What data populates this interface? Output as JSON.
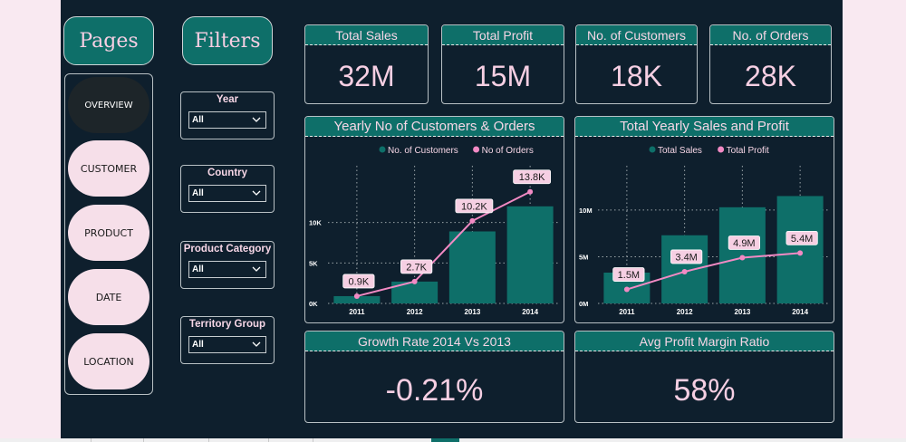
{
  "pages_header": "Pages",
  "filters_header": "Filters",
  "nav": [
    {
      "label": "OVERVIEW",
      "active": true
    },
    {
      "label": "CUSTOMER",
      "active": false
    },
    {
      "label": "PRODUCT",
      "active": false
    },
    {
      "label": "DATE",
      "active": false
    },
    {
      "label": "LOCATION",
      "active": false
    }
  ],
  "filters": [
    {
      "label": "Year",
      "value": "All"
    },
    {
      "label": "Country",
      "value": "All"
    },
    {
      "label": "Product Category",
      "value": "All"
    },
    {
      "label": "Territory Group",
      "value": "All"
    }
  ],
  "kpis": [
    {
      "title": "Total Sales",
      "value": "32M"
    },
    {
      "title": "Total Profit",
      "value": "15M"
    },
    {
      "title": "No. of Customers",
      "value": "18K"
    },
    {
      "title": "No. of Orders",
      "value": "28K"
    }
  ],
  "bottom_kpis": [
    {
      "title": "Growth Rate 2014 Vs 2013",
      "value": "-0.21%"
    },
    {
      "title": "Avg Profit Margin Ratio",
      "value": "58%"
    }
  ],
  "colors": {
    "bar": "#0e6f69",
    "line": "#f28ac4",
    "label_bg": "#f6cfe3",
    "grid": "#9aa4a8"
  },
  "chart_data": [
    {
      "type": "bar",
      "title": "Yearly No of Customers & Orders",
      "categories": [
        "2011",
        "2012",
        "2013",
        "2014"
      ],
      "series": [
        {
          "name": "No. of Customers",
          "kind": "bar",
          "values": [
            900,
            2700,
            8900,
            12000
          ]
        },
        {
          "name": "No of Orders",
          "kind": "line",
          "values": [
            900,
            2700,
            10200,
            13800
          ],
          "labels": [
            "0.9K",
            "2.7K",
            "10.2K",
            "13.8K"
          ]
        }
      ],
      "y_ticks": [
        {
          "v": 0,
          "label": "0K"
        },
        {
          "v": 5000,
          "label": "5K"
        },
        {
          "v": 10000,
          "label": "10K"
        }
      ],
      "ylim": [
        0,
        15000
      ],
      "legend": "top-center",
      "grid": true
    },
    {
      "type": "bar",
      "title": "Total Yearly Sales and Profit",
      "categories": [
        "2011",
        "2012",
        "2013",
        "2014"
      ],
      "series": [
        {
          "name": "Total Sales",
          "kind": "bar",
          "values": [
            3300000,
            7300000,
            10300000,
            11500000
          ]
        },
        {
          "name": "Total Profit",
          "kind": "line",
          "values": [
            1500000,
            3400000,
            4900000,
            5400000
          ],
          "labels": [
            "1.5M",
            "3.4M",
            "4.9M",
            "5.4M"
          ]
        }
      ],
      "y_ticks": [
        {
          "v": 0,
          "label": "0M"
        },
        {
          "v": 5000000,
          "label": "5M"
        },
        {
          "v": 10000000,
          "label": "10M"
        }
      ],
      "ylim": [
        0,
        13000000
      ],
      "legend": "top-center",
      "grid": true
    }
  ]
}
